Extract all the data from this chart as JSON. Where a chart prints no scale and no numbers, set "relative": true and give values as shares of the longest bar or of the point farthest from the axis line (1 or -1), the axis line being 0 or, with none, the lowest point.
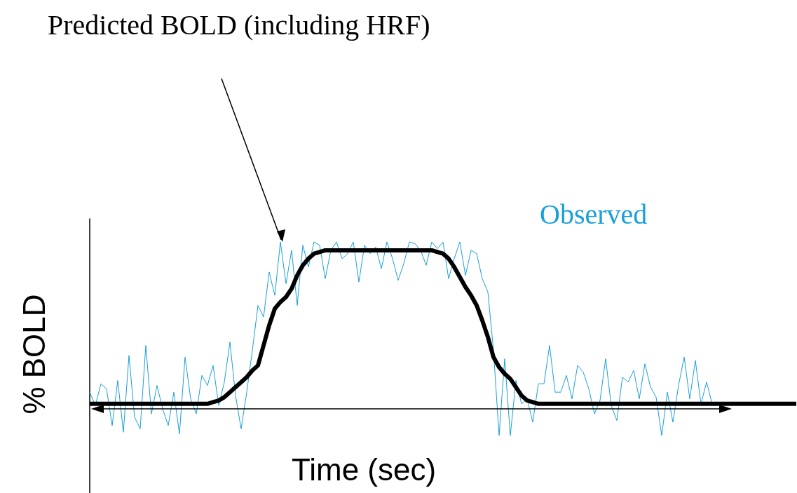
{
  "chart_data": {
    "type": "line",
    "relative": true,
    "xlabel": "Time (sec)",
    "ylabel": "% BOLD",
    "categories": [
      null,
      null,
      null,
      null,
      null,
      null,
      null,
      null,
      null,
      null,
      null,
      null,
      null,
      null,
      null,
      null,
      null,
      null,
      null,
      null,
      null,
      null,
      null,
      null,
      null,
      null,
      null,
      null,
      null,
      null,
      null,
      null,
      null,
      null,
      null,
      null,
      null,
      null,
      null,
      null,
      null,
      null,
      null,
      null,
      null,
      null,
      null,
      null,
      null,
      null,
      null,
      null,
      null,
      null,
      null,
      null,
      null,
      null,
      null,
      null,
      null,
      null,
      null,
      null,
      null,
      null,
      null,
      null,
      null,
      null,
      null,
      null,
      null,
      null,
      null,
      null,
      null,
      null,
      null,
      null,
      null,
      null,
      null,
      null,
      null,
      null,
      null,
      null,
      null,
      null,
      null,
      null,
      null,
      null,
      null,
      null,
      null,
      null,
      null,
      null,
      null,
      null,
      null,
      null,
      null,
      null,
      null,
      null,
      null,
      null,
      null,
      null,
      null,
      null,
      null,
      null,
      null,
      null,
      null,
      null,
      null,
      null,
      null,
      null,
      null,
      null,
      null
    ],
    "series": [
      {
        "name": "Observed",
        "color": "#1a9fd9",
        "values": [
          0.1,
          0.02,
          0.15,
          0.12,
          -0.1,
          0.17,
          -0.14,
          0.32,
          -0.05,
          -0.12,
          0.38,
          -0.03,
          0.14,
          0.0,
          -0.1,
          0.1,
          -0.15,
          0.31,
          0.06,
          -0.03,
          0.2,
          0.14,
          0.26,
          0.02,
          0.16,
          0.4,
          0.08,
          -0.12,
          0.1,
          0.35,
          0.62,
          0.55,
          0.82,
          0.68,
          1.0,
          0.75,
          0.95,
          0.62,
          0.98,
          0.85,
          1.0,
          0.98,
          0.78,
          0.95,
          1.0,
          0.9,
          0.93,
          1.0,
          0.76,
          0.98,
          0.93,
          0.97,
          0.84,
          1.0,
          0.9,
          0.77,
          0.87,
          1.0,
          0.99,
          0.95,
          0.86,
          1.0,
          0.96,
          1.0,
          0.78,
          0.9,
          1.0,
          0.8,
          0.95,
          0.93,
          0.78,
          0.7,
          0.35,
          -0.16,
          0.3,
          -0.16,
          0.17,
          0.03,
          0.06,
          -0.08,
          0.15,
          0.15,
          0.38,
          0.1,
          0.1,
          0.2,
          0.06,
          0.26,
          0.22,
          0.12,
          -0.03,
          0.05,
          0.3,
          0.02,
          -0.07,
          0.19,
          0.16,
          0.23,
          0.06,
          0.27,
          0.13,
          0.07,
          -0.16,
          0.1,
          -0.08,
          0.14,
          0.31,
          0.06,
          0.29,
          0.03,
          0.16,
          0.03,
          null,
          null,
          null,
          null,
          null,
          null,
          null,
          null,
          null,
          null,
          null,
          null,
          null,
          null,
          null
        ]
      },
      {
        "name": "Predicted BOLD (including HRF)",
        "color": "#000000",
        "values": [
          0.03,
          0.03,
          0.03,
          0.03,
          0.03,
          0.03,
          0.03,
          0.03,
          0.03,
          0.03,
          0.03,
          0.03,
          0.03,
          0.03,
          0.03,
          0.03,
          0.03,
          0.03,
          0.03,
          0.03,
          0.03,
          0.03,
          0.04,
          0.05,
          0.07,
          0.1,
          0.13,
          0.16,
          0.19,
          0.23,
          0.26,
          0.38,
          0.5,
          0.6,
          0.64,
          0.67,
          0.72,
          0.8,
          0.86,
          0.9,
          0.93,
          0.94,
          0.95,
          0.95,
          0.95,
          0.95,
          0.95,
          0.95,
          0.95,
          0.95,
          0.95,
          0.95,
          0.95,
          0.95,
          0.95,
          0.95,
          0.95,
          0.95,
          0.95,
          0.95,
          0.95,
          0.95,
          0.94,
          0.93,
          0.9,
          0.85,
          0.79,
          0.73,
          0.68,
          0.62,
          0.53,
          0.43,
          0.31,
          0.25,
          0.21,
          0.18,
          0.13,
          0.08,
          0.05,
          0.04,
          0.03,
          0.03,
          0.03,
          0.03,
          0.03,
          0.03,
          0.03,
          0.03,
          0.03,
          0.03,
          0.03,
          0.03,
          0.03,
          0.03,
          0.03,
          0.03,
          0.03,
          0.03,
          0.03,
          0.03,
          0.03,
          0.03,
          0.03,
          0.03,
          0.03,
          0.03,
          0.03,
          0.03,
          0.03,
          0.03,
          0.03,
          0.03,
          0.03,
          0.03,
          0.03,
          0.03,
          0.03,
          0.03,
          0.03,
          0.03,
          0.03,
          0.03,
          0.03,
          0.03,
          0.03,
          0.03,
          0.03
        ]
      }
    ]
  }
}
